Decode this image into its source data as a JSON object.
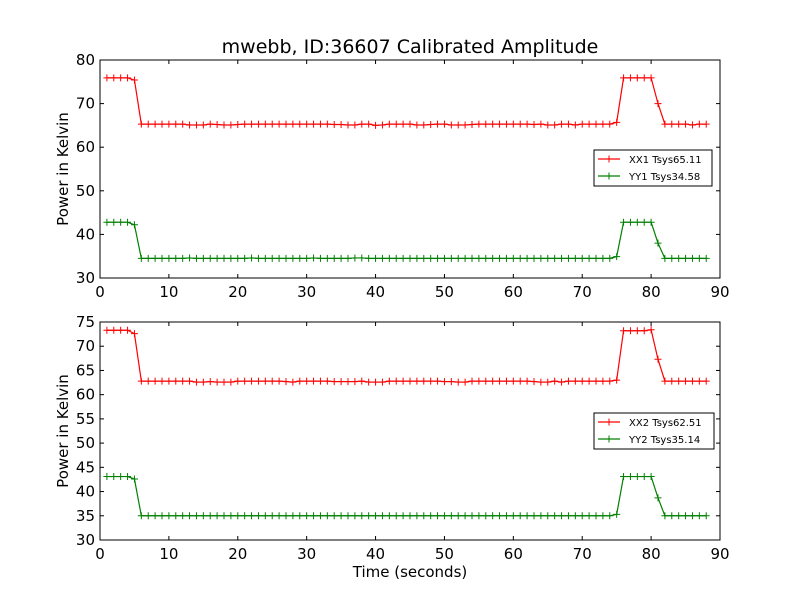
{
  "title": "mwebb, ID:36607 Calibrated Amplitude",
  "chart_data": [
    {
      "type": "line",
      "title": "mwebb, ID:36607 Calibrated Amplitude",
      "xlabel": "",
      "ylabel": "Power in Kelvin",
      "xlim": [
        0,
        90
      ],
      "ylim": [
        30,
        80
      ],
      "x_ticks": [
        0,
        10,
        20,
        30,
        40,
        50,
        60,
        70,
        80,
        90
      ],
      "y_ticks": [
        30,
        40,
        50,
        60,
        70,
        80
      ],
      "grid": false,
      "legend_position": "right",
      "x": [
        1,
        2,
        3,
        4,
        5,
        6,
        7,
        8,
        9,
        10,
        11,
        12,
        13,
        14,
        15,
        16,
        17,
        18,
        19,
        20,
        21,
        22,
        23,
        24,
        25,
        26,
        27,
        28,
        29,
        30,
        31,
        32,
        33,
        34,
        35,
        36,
        37,
        38,
        39,
        40,
        41,
        42,
        43,
        44,
        45,
        46,
        47,
        48,
        49,
        50,
        51,
        52,
        53,
        54,
        55,
        56,
        57,
        58,
        59,
        60,
        61,
        62,
        63,
        64,
        65,
        66,
        67,
        68,
        69,
        70,
        71,
        72,
        73,
        74,
        75,
        76,
        77,
        78,
        79,
        80,
        81,
        82,
        83,
        84,
        85,
        86,
        87,
        88
      ],
      "series": [
        {
          "name": "XX1 Tsys65.11",
          "color": "#ff0000",
          "values": [
            75.9,
            75.9,
            75.9,
            75.9,
            75.4,
            65.3,
            65.3,
            65.3,
            65.3,
            65.3,
            65.3,
            65.3,
            65.1,
            65.1,
            65.1,
            65.3,
            65.2,
            65.1,
            65.1,
            65.2,
            65.3,
            65.3,
            65.3,
            65.3,
            65.3,
            65.3,
            65.3,
            65.3,
            65.3,
            65.3,
            65.3,
            65.3,
            65.3,
            65.2,
            65.2,
            65.1,
            65.1,
            65.3,
            65.3,
            65.0,
            65.1,
            65.3,
            65.3,
            65.3,
            65.3,
            65.1,
            65.1,
            65.2,
            65.3,
            65.3,
            65.1,
            65.1,
            65.1,
            65.2,
            65.3,
            65.3,
            65.3,
            65.3,
            65.3,
            65.3,
            65.3,
            65.3,
            65.2,
            65.3,
            65.1,
            65.1,
            65.3,
            65.3,
            65.1,
            65.3,
            65.3,
            65.3,
            65.3,
            65.3,
            65.7,
            75.9,
            75.9,
            75.9,
            75.9,
            75.9,
            70.0,
            65.3,
            65.3,
            65.3,
            65.3,
            65.1,
            65.3,
            65.3
          ]
        },
        {
          "name": "YY1 Tsys34.58",
          "color": "#008000",
          "values": [
            42.8,
            42.8,
            42.8,
            42.8,
            42.2,
            34.5,
            34.5,
            34.5,
            34.5,
            34.5,
            34.5,
            34.5,
            34.6,
            34.5,
            34.5,
            34.5,
            34.5,
            34.5,
            34.5,
            34.5,
            34.5,
            34.6,
            34.5,
            34.5,
            34.5,
            34.5,
            34.5,
            34.5,
            34.5,
            34.5,
            34.6,
            34.5,
            34.5,
            34.5,
            34.5,
            34.5,
            34.6,
            34.6,
            34.5,
            34.5,
            34.5,
            34.5,
            34.5,
            34.5,
            34.5,
            34.5,
            34.5,
            34.5,
            34.5,
            34.5,
            34.5,
            34.5,
            34.5,
            34.5,
            34.5,
            34.5,
            34.5,
            34.5,
            34.5,
            34.5,
            34.5,
            34.5,
            34.5,
            34.5,
            34.5,
            34.5,
            34.5,
            34.5,
            34.5,
            34.5,
            34.5,
            34.5,
            34.5,
            34.5,
            34.9,
            42.8,
            42.8,
            42.8,
            42.8,
            42.8,
            38.0,
            34.5,
            34.5,
            34.5,
            34.5,
            34.5,
            34.5,
            34.5
          ]
        }
      ]
    },
    {
      "type": "line",
      "title": "",
      "xlabel": "Time (seconds)",
      "ylabel": "Power in Kelvin",
      "xlim": [
        0,
        90
      ],
      "ylim": [
        30,
        75
      ],
      "x_ticks": [
        0,
        10,
        20,
        30,
        40,
        50,
        60,
        70,
        80,
        90
      ],
      "y_ticks": [
        30,
        35,
        40,
        45,
        50,
        55,
        60,
        65,
        70,
        75
      ],
      "grid": false,
      "legend_position": "right",
      "x": [
        1,
        2,
        3,
        4,
        5,
        6,
        7,
        8,
        9,
        10,
        11,
        12,
        13,
        14,
        15,
        16,
        17,
        18,
        19,
        20,
        21,
        22,
        23,
        24,
        25,
        26,
        27,
        28,
        29,
        30,
        31,
        32,
        33,
        34,
        35,
        36,
        37,
        38,
        39,
        40,
        41,
        42,
        43,
        44,
        45,
        46,
        47,
        48,
        49,
        50,
        51,
        52,
        53,
        54,
        55,
        56,
        57,
        58,
        59,
        60,
        61,
        62,
        63,
        64,
        65,
        66,
        67,
        68,
        69,
        70,
        71,
        72,
        73,
        74,
        75,
        76,
        77,
        78,
        79,
        80,
        81,
        82,
        83,
        84,
        85,
        86,
        87,
        88
      ],
      "series": [
        {
          "name": "XX2 Tsys62.51",
          "color": "#ff0000",
          "values": [
            73.3,
            73.3,
            73.3,
            73.3,
            72.6,
            62.8,
            62.8,
            62.8,
            62.8,
            62.8,
            62.8,
            62.8,
            62.8,
            62.6,
            62.6,
            62.7,
            62.6,
            62.6,
            62.6,
            62.8,
            62.8,
            62.8,
            62.8,
            62.8,
            62.8,
            62.8,
            62.7,
            62.6,
            62.8,
            62.8,
            62.8,
            62.8,
            62.8,
            62.7,
            62.7,
            62.7,
            62.7,
            62.8,
            62.6,
            62.6,
            62.6,
            62.8,
            62.8,
            62.8,
            62.8,
            62.8,
            62.8,
            62.8,
            62.8,
            62.7,
            62.7,
            62.6,
            62.6,
            62.8,
            62.8,
            62.8,
            62.8,
            62.8,
            62.8,
            62.8,
            62.8,
            62.8,
            62.7,
            62.6,
            62.6,
            62.8,
            62.6,
            62.8,
            62.8,
            62.8,
            62.8,
            62.8,
            62.8,
            62.8,
            63.0,
            73.2,
            73.2,
            73.2,
            73.2,
            73.4,
            67.3,
            62.8,
            62.8,
            62.8,
            62.8,
            62.8,
            62.8,
            62.8
          ]
        },
        {
          "name": "YY2 Tsys35.14",
          "color": "#008000",
          "values": [
            43.1,
            43.1,
            43.1,
            43.1,
            42.6,
            35.0,
            35.0,
            35.0,
            35.0,
            35.0,
            35.0,
            35.0,
            35.0,
            35.0,
            35.0,
            35.0,
            35.0,
            35.0,
            35.0,
            35.0,
            35.0,
            35.0,
            35.0,
            35.0,
            35.0,
            35.0,
            35.0,
            35.0,
            35.0,
            35.0,
            35.0,
            35.0,
            35.0,
            35.0,
            35.0,
            35.0,
            35.0,
            35.0,
            35.0,
            35.0,
            35.0,
            35.0,
            35.0,
            35.0,
            35.0,
            35.0,
            35.0,
            35.0,
            35.0,
            35.0,
            35.0,
            35.0,
            35.0,
            35.0,
            35.0,
            35.0,
            35.0,
            35.0,
            35.0,
            35.0,
            35.0,
            35.0,
            35.0,
            35.0,
            35.0,
            35.0,
            35.0,
            35.0,
            35.0,
            35.0,
            35.0,
            35.0,
            35.0,
            35.0,
            35.3,
            43.1,
            43.1,
            43.1,
            43.1,
            43.1,
            38.7,
            35.0,
            35.0,
            35.0,
            35.0,
            35.0,
            35.0,
            35.0
          ]
        }
      ]
    }
  ]
}
